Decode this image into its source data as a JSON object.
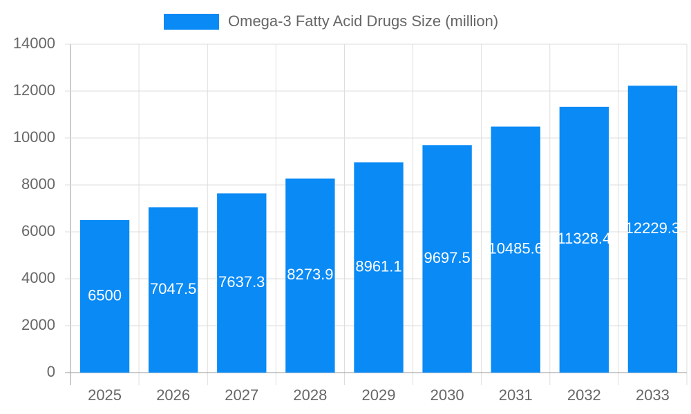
{
  "chart_data": {
    "type": "bar",
    "series": [
      {
        "name": "Omega-3 Fatty Acid Drugs Size (million)",
        "color": "#0a8af5",
        "values": [
          6500,
          7047.5,
          7637.3,
          8273.9,
          8961.1,
          9697.5,
          10485.6,
          11328.4,
          12229.3
        ]
      }
    ],
    "categories": [
      "2025",
      "2026",
      "2027",
      "2028",
      "2029",
      "2030",
      "2031",
      "2032",
      "2033"
    ],
    "ylim": [
      0,
      14000
    ],
    "yticks": [
      0,
      2000,
      4000,
      6000,
      8000,
      10000,
      12000,
      14000
    ],
    "grid": true,
    "legend": "top"
  }
}
